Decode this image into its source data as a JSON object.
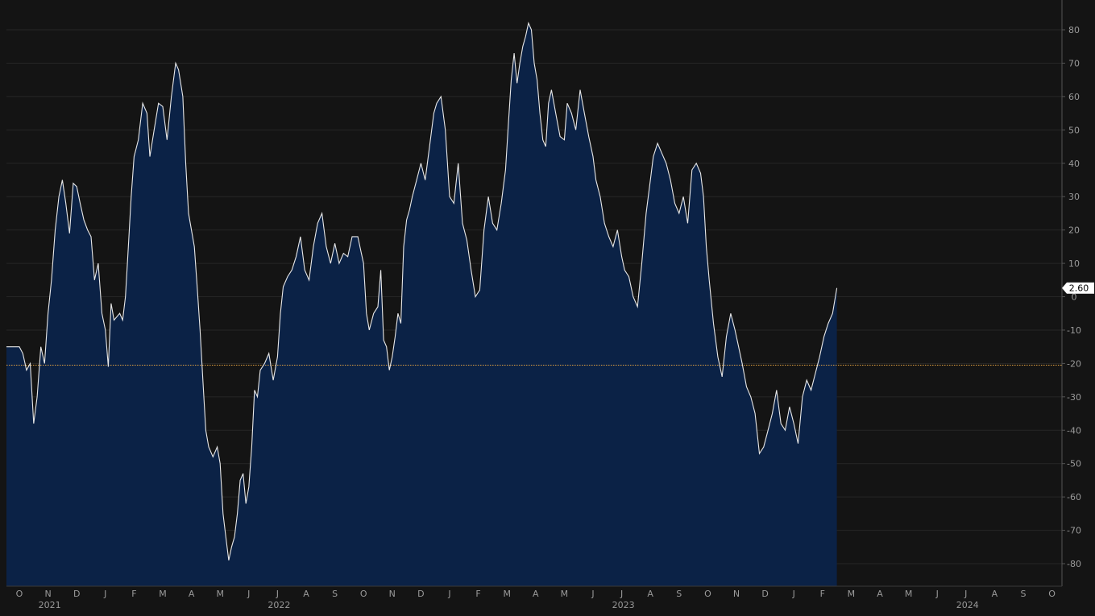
{
  "chart_data": {
    "type": "area",
    "y_axis_side": "right",
    "ylim": [
      -86,
      82
    ],
    "y_ticks": [
      80,
      70,
      60,
      50,
      40,
      30,
      20,
      10,
      0,
      -10,
      -20,
      -30,
      -40,
      -50,
      -60,
      -70,
      -80
    ],
    "grid": true,
    "reference_line": {
      "value": -20.5,
      "color": "#e0a040",
      "style": "dotted"
    },
    "last_value_label": "2.60",
    "month_ticks": [
      "O",
      "N",
      "D",
      "J",
      "F",
      "M",
      "A",
      "M",
      "J",
      "J",
      "A",
      "S",
      "O",
      "N",
      "D",
      "J",
      "F",
      "M",
      "A",
      "M",
      "J",
      "J",
      "A",
      "S",
      "O",
      "N",
      "D",
      "J",
      "F",
      "M",
      "A",
      "M",
      "J",
      "J",
      "A",
      "S",
      "O"
    ],
    "year_labels": [
      {
        "label": "2021",
        "month_index": 1
      },
      {
        "label": "2022",
        "month_index": 9
      },
      {
        "label": "2023",
        "month_index": 21
      },
      {
        "label": "2024",
        "month_index": 33
      }
    ],
    "series": [
      {
        "line_color": "#e8e8e8",
        "fill_color": "#0b2246",
        "points": [
          [
            0.0,
            -15
          ],
          [
            0.12,
            -17
          ],
          [
            0.25,
            -22
          ],
          [
            0.38,
            -20
          ],
          [
            0.5,
            -38
          ],
          [
            0.62,
            -30
          ],
          [
            0.75,
            -15
          ],
          [
            0.88,
            -20
          ],
          [
            1.0,
            -5
          ],
          [
            1.12,
            5
          ],
          [
            1.25,
            20
          ],
          [
            1.38,
            30
          ],
          [
            1.5,
            35
          ],
          [
            1.62,
            28
          ],
          [
            1.75,
            19
          ],
          [
            1.88,
            34
          ],
          [
            2.0,
            33
          ],
          [
            2.12,
            28
          ],
          [
            2.25,
            23
          ],
          [
            2.38,
            20
          ],
          [
            2.5,
            18
          ],
          [
            2.62,
            5
          ],
          [
            2.75,
            10
          ],
          [
            2.88,
            -5
          ],
          [
            3.0,
            -10
          ],
          [
            3.1,
            -21
          ],
          [
            3.2,
            -2
          ],
          [
            3.3,
            -7
          ],
          [
            3.4,
            -6
          ],
          [
            3.5,
            -5
          ],
          [
            3.6,
            -7
          ],
          [
            3.7,
            0
          ],
          [
            3.8,
            15
          ],
          [
            3.9,
            30
          ],
          [
            4.0,
            42
          ],
          [
            4.15,
            47
          ],
          [
            4.3,
            58
          ],
          [
            4.45,
            55
          ],
          [
            4.55,
            42
          ],
          [
            4.7,
            50
          ],
          [
            4.85,
            58
          ],
          [
            5.0,
            57
          ],
          [
            5.15,
            47
          ],
          [
            5.3,
            60
          ],
          [
            5.45,
            70
          ],
          [
            5.55,
            68
          ],
          [
            5.7,
            60
          ],
          [
            5.8,
            40
          ],
          [
            5.9,
            25
          ],
          [
            6.0,
            20
          ],
          [
            6.1,
            15
          ],
          [
            6.2,
            3
          ],
          [
            6.3,
            -10
          ],
          [
            6.4,
            -25
          ],
          [
            6.5,
            -40
          ],
          [
            6.6,
            -45
          ],
          [
            6.75,
            -48
          ],
          [
            6.9,
            -45
          ],
          [
            7.0,
            -50
          ],
          [
            7.1,
            -65
          ],
          [
            7.2,
            -72
          ],
          [
            7.3,
            -79
          ],
          [
            7.4,
            -75
          ],
          [
            7.5,
            -72
          ],
          [
            7.6,
            -65
          ],
          [
            7.7,
            -55
          ],
          [
            7.8,
            -53
          ],
          [
            7.9,
            -62
          ],
          [
            8.0,
            -57
          ],
          [
            8.1,
            -45
          ],
          [
            8.2,
            -28
          ],
          [
            8.3,
            -30
          ],
          [
            8.4,
            -22
          ],
          [
            8.55,
            -20
          ],
          [
            8.7,
            -17
          ],
          [
            8.85,
            -25
          ],
          [
            9.0,
            -18
          ],
          [
            9.1,
            -5
          ],
          [
            9.2,
            3
          ],
          [
            9.35,
            6
          ],
          [
            9.5,
            8
          ],
          [
            9.65,
            12
          ],
          [
            9.8,
            18
          ],
          [
            9.95,
            8
          ],
          [
            10.1,
            5
          ],
          [
            10.25,
            15
          ],
          [
            10.4,
            22
          ],
          [
            10.55,
            25
          ],
          [
            10.7,
            15
          ],
          [
            10.85,
            10
          ],
          [
            11.0,
            16
          ],
          [
            11.15,
            10
          ],
          [
            11.3,
            13
          ],
          [
            11.45,
            12
          ],
          [
            11.6,
            18
          ],
          [
            11.8,
            18
          ],
          [
            11.9,
            14
          ],
          [
            12.0,
            10
          ],
          [
            12.1,
            -5
          ],
          [
            12.2,
            -10
          ],
          [
            12.35,
            -5
          ],
          [
            12.5,
            -3
          ],
          [
            12.6,
            8
          ],
          [
            12.7,
            -13
          ],
          [
            12.8,
            -15
          ],
          [
            12.9,
            -22
          ],
          [
            13.0,
            -18
          ],
          [
            13.1,
            -12
          ],
          [
            13.2,
            -5
          ],
          [
            13.3,
            -8
          ],
          [
            13.4,
            15
          ],
          [
            13.5,
            23
          ],
          [
            13.6,
            26
          ],
          [
            13.7,
            30
          ],
          [
            13.85,
            35
          ],
          [
            14.0,
            40
          ],
          [
            14.15,
            35
          ],
          [
            14.3,
            45
          ],
          [
            14.45,
            55
          ],
          [
            14.55,
            58
          ],
          [
            14.7,
            60
          ],
          [
            14.85,
            50
          ],
          [
            15.0,
            30
          ],
          [
            15.15,
            28
          ],
          [
            15.3,
            40
          ],
          [
            15.45,
            22
          ],
          [
            15.6,
            17
          ],
          [
            15.75,
            8
          ],
          [
            15.9,
            0
          ],
          [
            16.05,
            2
          ],
          [
            16.2,
            20
          ],
          [
            16.35,
            30
          ],
          [
            16.5,
            22
          ],
          [
            16.65,
            20
          ],
          [
            16.8,
            28
          ],
          [
            16.95,
            38
          ],
          [
            17.05,
            52
          ],
          [
            17.15,
            65
          ],
          [
            17.25,
            73
          ],
          [
            17.35,
            64
          ],
          [
            17.45,
            70
          ],
          [
            17.55,
            75
          ],
          [
            17.65,
            78
          ],
          [
            17.75,
            82
          ],
          [
            17.85,
            80
          ],
          [
            17.95,
            70
          ],
          [
            18.05,
            65
          ],
          [
            18.15,
            55
          ],
          [
            18.25,
            47
          ],
          [
            18.35,
            45
          ],
          [
            18.45,
            58
          ],
          [
            18.55,
            62
          ],
          [
            18.7,
            55
          ],
          [
            18.85,
            48
          ],
          [
            19.0,
            47
          ],
          [
            19.1,
            58
          ],
          [
            19.25,
            55
          ],
          [
            19.4,
            50
          ],
          [
            19.55,
            62
          ],
          [
            19.7,
            55
          ],
          [
            19.85,
            48
          ],
          [
            20.0,
            42
          ],
          [
            20.1,
            35
          ],
          [
            20.25,
            30
          ],
          [
            20.4,
            22
          ],
          [
            20.55,
            18
          ],
          [
            20.7,
            15
          ],
          [
            20.85,
            20
          ],
          [
            21.0,
            12
          ],
          [
            21.1,
            8
          ],
          [
            21.25,
            6
          ],
          [
            21.4,
            0
          ],
          [
            21.55,
            -3
          ],
          [
            21.7,
            10
          ],
          [
            21.85,
            25
          ],
          [
            22.0,
            35
          ],
          [
            22.1,
            42
          ],
          [
            22.25,
            46
          ],
          [
            22.4,
            43
          ],
          [
            22.55,
            40
          ],
          [
            22.7,
            35
          ],
          [
            22.85,
            28
          ],
          [
            23.0,
            25
          ],
          [
            23.15,
            30
          ],
          [
            23.3,
            22
          ],
          [
            23.45,
            38
          ],
          [
            23.6,
            40
          ],
          [
            23.75,
            37
          ],
          [
            23.85,
            30
          ],
          [
            23.95,
            15
          ],
          [
            24.05,
            5
          ],
          [
            24.2,
            -8
          ],
          [
            24.35,
            -18
          ],
          [
            24.5,
            -24
          ],
          [
            24.65,
            -12
          ],
          [
            24.8,
            -5
          ],
          [
            24.95,
            -10
          ],
          [
            25.05,
            -14
          ],
          [
            25.2,
            -20
          ],
          [
            25.35,
            -27
          ],
          [
            25.5,
            -30
          ],
          [
            25.65,
            -35
          ],
          [
            25.8,
            -47
          ],
          [
            25.95,
            -45
          ],
          [
            26.1,
            -40
          ],
          [
            26.25,
            -35
          ],
          [
            26.4,
            -28
          ],
          [
            26.55,
            -38
          ],
          [
            26.7,
            -40
          ],
          [
            26.85,
            -33
          ],
          [
            27.0,
            -38
          ],
          [
            27.15,
            -44
          ],
          [
            27.3,
            -30
          ],
          [
            27.45,
            -25
          ],
          [
            27.6,
            -28
          ],
          [
            27.75,
            -23
          ],
          [
            27.9,
            -18
          ],
          [
            28.05,
            -12
          ],
          [
            28.2,
            -8
          ],
          [
            28.35,
            -5
          ],
          [
            28.5,
            2.6
          ]
        ]
      }
    ]
  }
}
